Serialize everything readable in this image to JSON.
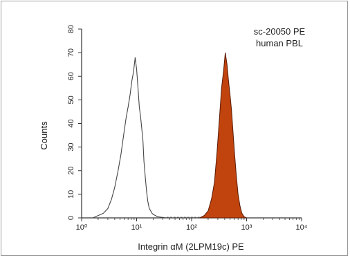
{
  "chart_data": {
    "type": "area",
    "xlabel": "Integrin αM (2LPM19c) PE",
    "ylabel": "Counts",
    "x_scale": "log",
    "xlim": [
      1,
      10000
    ],
    "ylim": [
      0,
      80
    ],
    "x_ticks": [
      "10⁰",
      "10¹",
      "10²",
      "10³",
      "10⁴"
    ],
    "y_ticks": [
      0,
      10,
      20,
      30,
      40,
      50,
      60,
      70,
      80
    ],
    "annotation": [
      "sc-20050 PE",
      "human PBL"
    ],
    "grid": false,
    "series": [
      {
        "style": "outline",
        "color": "#444444",
        "x": [
          1.6,
          2.0,
          2.5,
          3.0,
          3.5,
          4.0,
          4.6,
          5.2,
          5.8,
          6.4,
          7.0,
          7.6,
          8.2,
          8.8,
          9.4,
          10.0,
          10.6,
          11.2,
          11.8,
          12.4,
          13.0,
          13.6,
          14.4,
          15.2,
          16.0,
          17.0,
          18.0,
          19.0,
          20.0,
          22.0,
          24.0,
          28.0,
          35.0
        ],
        "y": [
          0,
          1,
          2,
          4,
          8,
          13,
          20,
          27,
          35,
          42,
          47,
          52,
          58,
          62,
          68,
          63,
          55,
          47,
          43,
          38,
          33,
          24,
          17,
          11,
          7,
          4,
          3,
          2,
          1.5,
          1,
          0.5,
          0.3,
          0
        ]
      },
      {
        "style": "filled",
        "color": "#c1440e",
        "x": [
          140,
          170,
          200,
          230,
          260,
          290,
          320,
          350,
          380,
          410,
          440,
          470,
          500,
          530,
          560,
          600,
          650,
          700,
          760,
          820,
          900,
          1000
        ],
        "y": [
          0,
          1,
          3,
          8,
          15,
          28,
          42,
          55,
          62,
          70,
          65,
          58,
          52,
          46,
          38,
          28,
          18,
          10,
          5,
          2,
          0.5,
          0
        ]
      }
    ]
  },
  "colors": {
    "axis": "#333333",
    "frame": "#9a9a9a",
    "outline_series": "#444444",
    "filled_series": "#c1440e",
    "filled_edge": "#5a1a05"
  }
}
